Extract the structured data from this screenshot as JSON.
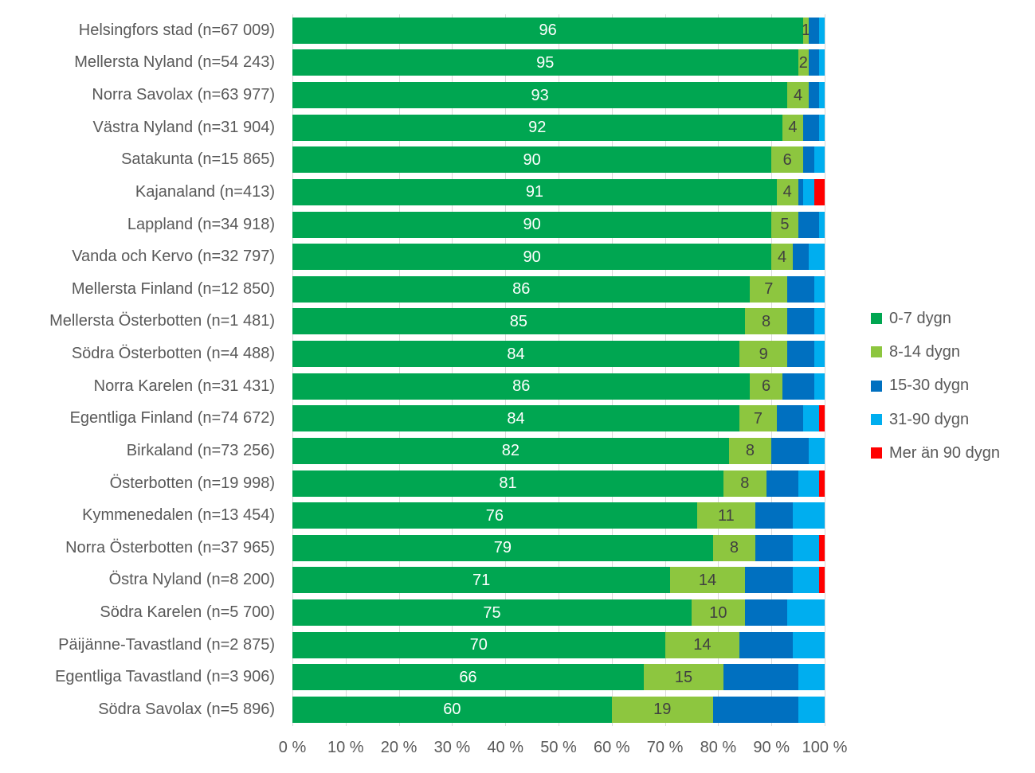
{
  "chart_data": {
    "type": "bar",
    "variant": "horizontal-stacked-100",
    "title": "",
    "xlabel": "",
    "ylabel": "",
    "xlim": [
      0,
      100
    ],
    "grid": "vertical",
    "legend_position": "right",
    "x_ticks": [
      "0 %",
      "10 %",
      "20 %",
      "30 %",
      "40 %",
      "50 %",
      "60 %",
      "70 %",
      "80 %",
      "90 %",
      "100 %"
    ],
    "series": [
      {
        "name": "0-7 dygn",
        "color": "#00A651"
      },
      {
        "name": "8-14 dygn",
        "color": "#8DC63F"
      },
      {
        "name": "15-30 dygn",
        "color": "#0070C0"
      },
      {
        "name": "31-90 dygn",
        "color": "#00AEEF"
      },
      {
        "name": "Mer än 90 dygn",
        "color": "#FF0000"
      }
    ],
    "style": {
      "gridline_color": "#D9D9D9",
      "axis_text_color": "#595959",
      "bar_label_light": "#FFFFFF",
      "bar_label_dark": "#404040"
    },
    "rows": [
      {
        "label": "Helsingfors stad (n=67 009)",
        "values": [
          96,
          1,
          2,
          1,
          0
        ],
        "value_labels": [
          "96",
          "1",
          "",
          "",
          ""
        ]
      },
      {
        "label": "Mellersta Nyland (n=54 243)",
        "values": [
          95,
          2,
          2,
          1,
          0
        ],
        "value_labels": [
          "95",
          "2",
          "",
          "",
          ""
        ]
      },
      {
        "label": "Norra Savolax (n=63 977)",
        "values": [
          93,
          4,
          2,
          1,
          0
        ],
        "value_labels": [
          "93",
          "4",
          "",
          "",
          ""
        ]
      },
      {
        "label": "Västra Nyland (n=31 904)",
        "values": [
          92,
          4,
          3,
          1,
          0
        ],
        "value_labels": [
          "92",
          "4",
          "",
          "",
          ""
        ]
      },
      {
        "label": "Satakunta (n=15 865)",
        "values": [
          90,
          6,
          2,
          2,
          0
        ],
        "value_labels": [
          "90",
          "6",
          "",
          "",
          ""
        ]
      },
      {
        "label": "Kajanaland (n=413)",
        "values": [
          91,
          4,
          1,
          2,
          2
        ],
        "value_labels": [
          "91",
          "4",
          "",
          "",
          ""
        ]
      },
      {
        "label": "Lappland (n=34 918)",
        "values": [
          90,
          5,
          4,
          1,
          0
        ],
        "value_labels": [
          "90",
          "5",
          "",
          "",
          ""
        ]
      },
      {
        "label": "Vanda och Kervo (n=32 797)",
        "values": [
          90,
          4,
          3,
          3,
          0
        ],
        "value_labels": [
          "90",
          "4",
          "",
          "",
          ""
        ]
      },
      {
        "label": "Mellersta Finland (n=12 850)",
        "values": [
          86,
          7,
          5,
          2,
          0
        ],
        "value_labels": [
          "86",
          "7",
          "",
          "",
          ""
        ]
      },
      {
        "label": "Mellersta Österbotten (n=1 481)",
        "values": [
          85,
          8,
          5,
          2,
          0
        ],
        "value_labels": [
          "85",
          "8",
          "",
          "",
          ""
        ]
      },
      {
        "label": "Södra Österbotten (n=4 488)",
        "values": [
          84,
          9,
          5,
          2,
          0
        ],
        "value_labels": [
          "84",
          "9",
          "",
          "",
          ""
        ]
      },
      {
        "label": "Norra Karelen (n=31 431)",
        "values": [
          86,
          6,
          6,
          2,
          0
        ],
        "value_labels": [
          "86",
          "6",
          "",
          "",
          ""
        ]
      },
      {
        "label": "Egentliga Finland (n=74 672)",
        "values": [
          84,
          7,
          5,
          3,
          1
        ],
        "value_labels": [
          "84",
          "7",
          "",
          "",
          ""
        ]
      },
      {
        "label": "Birkaland (n=73 256)",
        "values": [
          82,
          8,
          7,
          3,
          0
        ],
        "value_labels": [
          "82",
          "8",
          "",
          "",
          ""
        ]
      },
      {
        "label": "Österbotten (n=19 998)",
        "values": [
          81,
          8,
          6,
          4,
          1
        ],
        "value_labels": [
          "81",
          "8",
          "",
          "",
          ""
        ]
      },
      {
        "label": "Kymmenedalen (n=13 454)",
        "values": [
          76,
          11,
          7,
          6,
          0
        ],
        "value_labels": [
          "76",
          "11",
          "",
          "",
          ""
        ]
      },
      {
        "label": "Norra Österbotten (n=37 965)",
        "values": [
          79,
          8,
          7,
          5,
          1
        ],
        "value_labels": [
          "79",
          "8",
          "",
          "",
          ""
        ]
      },
      {
        "label": "Östra Nyland (n=8 200)",
        "values": [
          71,
          14,
          9,
          5,
          1
        ],
        "value_labels": [
          "71",
          "14",
          "",
          "",
          ""
        ]
      },
      {
        "label": "Södra Karelen (n=5 700)",
        "values": [
          75,
          10,
          8,
          7,
          0
        ],
        "value_labels": [
          "75",
          "10",
          "",
          "",
          ""
        ]
      },
      {
        "label": "Päijänne-Tavastland (n=2 875)",
        "values": [
          70,
          14,
          10,
          6,
          0
        ],
        "value_labels": [
          "70",
          "14",
          "",
          "",
          ""
        ]
      },
      {
        "label": "Egentliga Tavastland (n=3 906)",
        "values": [
          66,
          15,
          14,
          5,
          0
        ],
        "value_labels": [
          "66",
          "15",
          "",
          "",
          ""
        ]
      },
      {
        "label": "Södra Savolax (n=5 896)",
        "values": [
          60,
          19,
          16,
          5,
          0
        ],
        "value_labels": [
          "60",
          "19",
          "",
          "",
          ""
        ]
      }
    ]
  }
}
